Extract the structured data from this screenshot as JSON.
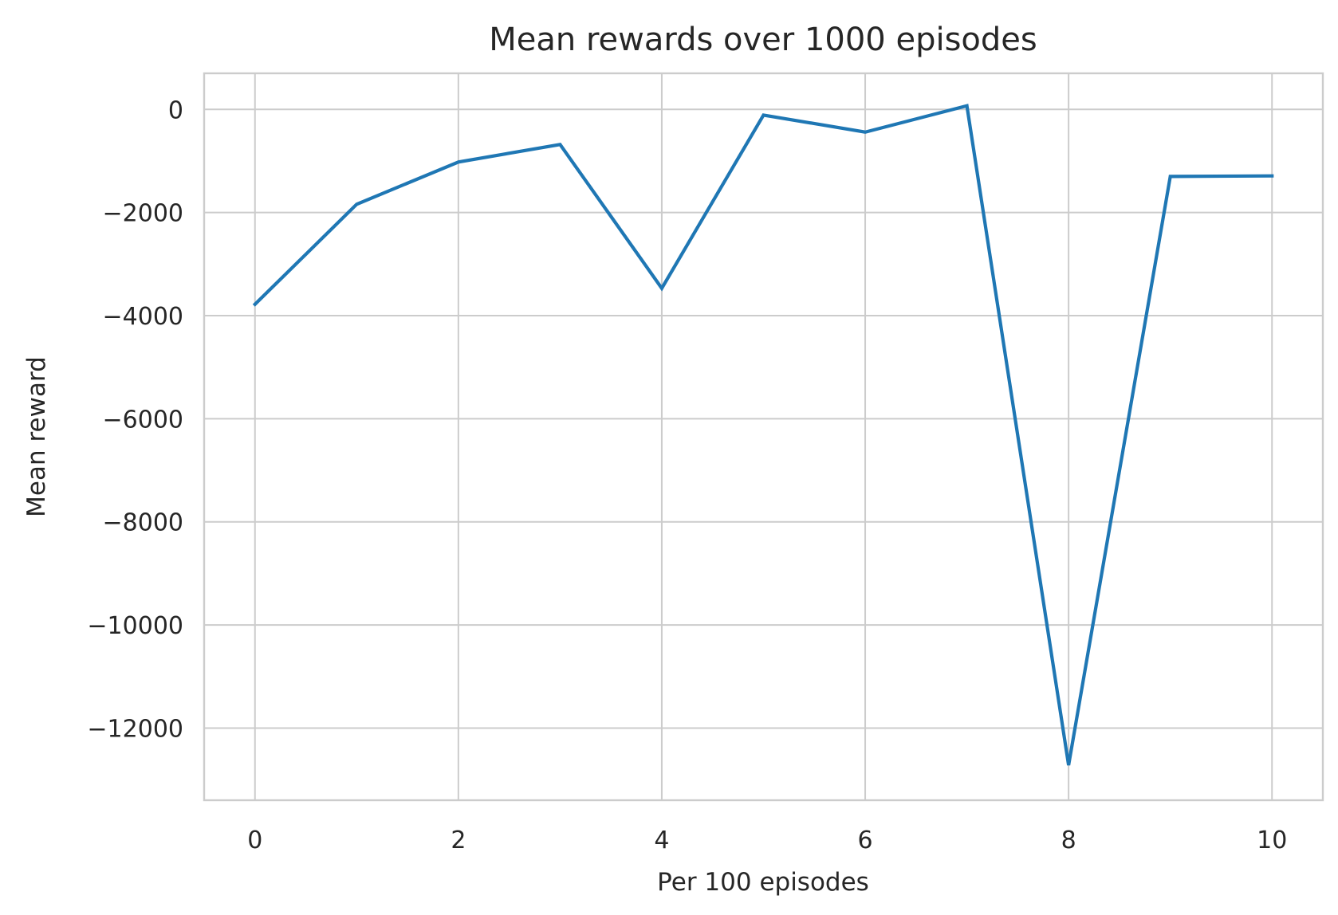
{
  "chart_data": {
    "type": "line",
    "title": "Mean rewards over 1000 episodes",
    "xlabel": "Per 100 episodes",
    "ylabel": "Mean reward",
    "x": [
      0,
      1,
      2,
      3,
      4,
      5,
      6,
      7,
      8,
      9,
      10
    ],
    "series": [
      {
        "values": [
          -3780,
          -1840,
          -1020,
          -680,
          -3470,
          -110,
          -440,
          70,
          -12720,
          -1300,
          -1290
        ],
        "color": "#1f77b4"
      }
    ],
    "xlim": [
      -0.5,
      10.5
    ],
    "ylim": [
      -13400,
      700
    ],
    "xticks": [
      0,
      2,
      4,
      6,
      8,
      10
    ],
    "yticks": [
      0,
      -2000,
      -4000,
      -6000,
      -8000,
      -10000,
      -12000
    ],
    "xtick_labels": [
      "0",
      "2",
      "4",
      "6",
      "8",
      "10"
    ],
    "ytick_labels": [
      "0",
      "−2000",
      "−4000",
      "−6000",
      "−8000",
      "−10000",
      "−12000"
    ],
    "grid": true,
    "legend": "none",
    "colors": {
      "line": "#1f77b4",
      "grid": "#cccccc",
      "text": "#262626",
      "background": "#ffffff"
    }
  }
}
